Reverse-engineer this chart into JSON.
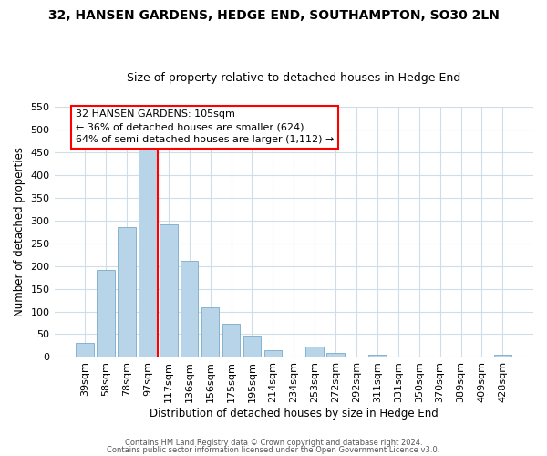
{
  "title": "32, HANSEN GARDENS, HEDGE END, SOUTHAMPTON, SO30 2LN",
  "subtitle": "Size of property relative to detached houses in Hedge End",
  "xlabel": "Distribution of detached houses by size in Hedge End",
  "ylabel": "Number of detached properties",
  "bar_labels": [
    "39sqm",
    "58sqm",
    "78sqm",
    "97sqm",
    "117sqm",
    "136sqm",
    "156sqm",
    "175sqm",
    "195sqm",
    "214sqm",
    "234sqm",
    "253sqm",
    "272sqm",
    "292sqm",
    "311sqm",
    "331sqm",
    "350sqm",
    "370sqm",
    "389sqm",
    "409sqm",
    "428sqm"
  ],
  "bar_values": [
    30,
    192,
    285,
    457,
    292,
    212,
    110,
    74,
    46,
    14,
    0,
    22,
    8,
    0,
    5,
    0,
    0,
    0,
    0,
    0,
    4
  ],
  "bar_color": "#b8d4e8",
  "bar_edge_color": "#7aaac8",
  "vline_x": 3.5,
  "vline_color": "red",
  "annotation_line1": "32 HANSEN GARDENS: 105sqm",
  "annotation_line2": "← 36% of detached houses are smaller (624)",
  "annotation_line3": "64% of semi-detached houses are larger (1,112) →",
  "annotation_box_color": "white",
  "annotation_box_edge": "red",
  "ylim": [
    0,
    550
  ],
  "yticks": [
    0,
    50,
    100,
    150,
    200,
    250,
    300,
    350,
    400,
    450,
    500,
    550
  ],
  "footer1": "Contains HM Land Registry data © Crown copyright and database right 2024.",
  "footer2": "Contains public sector information licensed under the Open Government Licence v3.0.",
  "bg_color": "#ffffff",
  "plot_bg_color": "#ffffff",
  "grid_color": "#d0dce8",
  "title_fontsize": 10,
  "subtitle_fontsize": 9
}
